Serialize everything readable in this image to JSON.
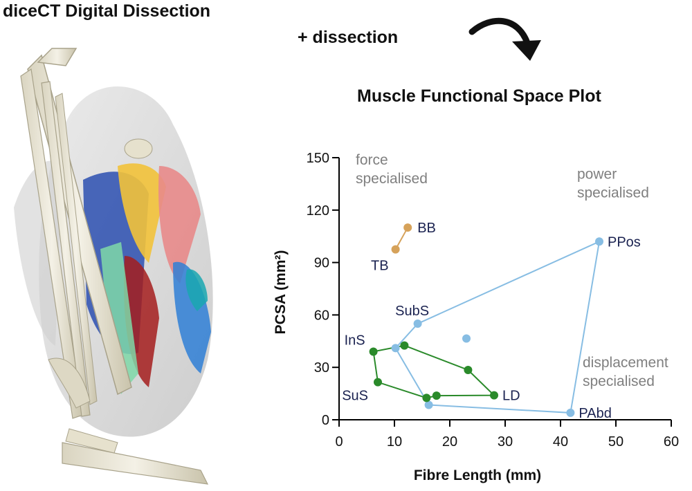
{
  "header": {
    "title": "diceCT Digital Dissection",
    "subtitle": "+ dissection"
  },
  "chart_data": {
    "type": "scatter",
    "title": "Muscle Functional Space Plot",
    "xlabel": "Fibre Length (mm)",
    "ylabel": "PCSA (mm²)",
    "xlim": [
      0,
      60
    ],
    "ylim": [
      0,
      150
    ],
    "xticks": [
      0,
      10,
      20,
      30,
      40,
      50,
      60
    ],
    "yticks": [
      0,
      30,
      60,
      90,
      120,
      150
    ],
    "grid": false,
    "annotations": [
      {
        "text": "force\nspecialised",
        "x": 3,
        "y": 146
      },
      {
        "text": "power\nspecialised",
        "x": 43,
        "y": 138
      },
      {
        "text": "displacement\nspecialised",
        "x": 44,
        "y": 30
      }
    ],
    "series": [
      {
        "color": "#87bde3",
        "hull": true,
        "points": [
          {
            "x": 14.2,
            "y": 55,
            "label": "SubS"
          },
          {
            "x": 47,
            "y": 102,
            "label": "PPos"
          },
          {
            "x": 41.8,
            "y": 4,
            "label": "PAbd"
          },
          {
            "x": 16.2,
            "y": 8.5,
            "label": ""
          },
          {
            "x": 10.2,
            "y": 41,
            "label": ""
          }
        ],
        "extra_points": [
          {
            "x": 23,
            "y": 46.5
          }
        ]
      },
      {
        "color": "#2a8a2a",
        "hull": true,
        "points": [
          {
            "x": 11.8,
            "y": 42.5,
            "label": ""
          },
          {
            "x": 23.3,
            "y": 28.5,
            "label": ""
          },
          {
            "x": 28,
            "y": 14,
            "label": "LD"
          },
          {
            "x": 17.6,
            "y": 13.8,
            "label": ""
          },
          {
            "x": 15.8,
            "y": 12.5,
            "label": ""
          },
          {
            "x": 7,
            "y": 21.5,
            "label": "SuS"
          },
          {
            "x": 6.2,
            "y": 39,
            "label": "InS"
          }
        ],
        "extra_points": []
      },
      {
        "color": "#d6a25a",
        "hull": false,
        "points": [
          {
            "x": 12.4,
            "y": 110,
            "label": "BB"
          },
          {
            "x": 10.2,
            "y": 97.5,
            "label": "TB"
          }
        ],
        "extra_points": []
      }
    ]
  }
}
